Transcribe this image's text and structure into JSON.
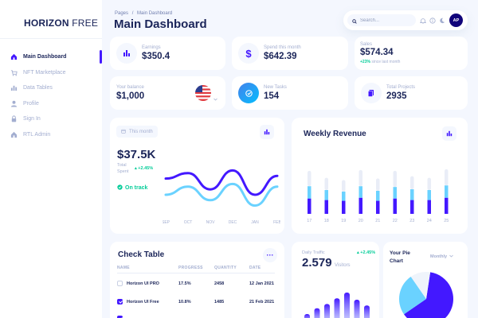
{
  "brand": {
    "bold": "HORIZON",
    "light": "FREE"
  },
  "sidebar": {
    "items": [
      {
        "label": "Main Dashboard",
        "icon": "home-icon",
        "active": true
      },
      {
        "label": "NFT Marketplace",
        "icon": "cart-icon",
        "active": false
      },
      {
        "label": "Data Tables",
        "icon": "bar-chart-icon",
        "active": false
      },
      {
        "label": "Profile",
        "icon": "person-icon",
        "active": false
      },
      {
        "label": "Sign In",
        "icon": "lock-icon",
        "active": false
      },
      {
        "label": "RTL Admin",
        "icon": "home-icon",
        "active": false
      }
    ]
  },
  "header": {
    "breadcrumb": {
      "root": "Pages",
      "separator": "/",
      "current": "Main Dashboard"
    },
    "title": "Main Dashboard",
    "search_placeholder": "Search...",
    "avatar_initials": "AP"
  },
  "stats": {
    "earnings": {
      "label": "Earnings",
      "value": "$350.4"
    },
    "spend": {
      "label": "Spend this month",
      "value": "$642.39"
    },
    "sales": {
      "label": "Sales",
      "value": "$574.34",
      "change": "+23%",
      "change_note": "since last month"
    },
    "balance": {
      "label": "Your balance",
      "value": "$1,000"
    },
    "tasks": {
      "label": "New Tasks",
      "value": "154"
    },
    "projects": {
      "label": "Total Projects",
      "value": "2935"
    }
  },
  "monthly": {
    "period_label": "This month",
    "value": "$37.5K",
    "sub_label_1": "Total",
    "sub_label_2": "Spent",
    "change": "+2.45%",
    "status": "On track",
    "x_labels": [
      "SEP",
      "OCT",
      "NOV",
      "DEC",
      "JAN",
      "FEB"
    ]
  },
  "weekly": {
    "title": "Weekly Revenue",
    "x_labels": [
      "17",
      "18",
      "19",
      "20",
      "21",
      "22",
      "23",
      "24",
      "25"
    ]
  },
  "check_table": {
    "title": "Check Table",
    "columns": [
      "NAME",
      "PROGRESS",
      "QUANTITY",
      "DATE"
    ],
    "rows": [
      {
        "name": "Horizon UI PRO",
        "progress": "17.5%",
        "quantity": "2458",
        "date": "12 Jan 2021",
        "checked": false
      },
      {
        "name": "Horizon UI Free",
        "progress": "10.8%",
        "quantity": "1485",
        "date": "21 Feb 2021",
        "checked": true
      }
    ]
  },
  "traffic": {
    "label": "Daily Traffic",
    "value": "2.579",
    "unit": "Visitors",
    "change": "+2.45%"
  },
  "pie": {
    "title_line1": "Your Pie",
    "title_line2": "Chart",
    "period": "Monthly"
  },
  "colors": {
    "accent": "#4318ff",
    "light_blue": "#6ad2ff",
    "navy": "#1b2559",
    "green": "#05cd99",
    "muted": "#a3aed0"
  },
  "chart_data": [
    {
      "type": "line",
      "x": [
        "SEP",
        "OCT",
        "NOV",
        "DEC",
        "JAN",
        "FEB"
      ],
      "series": [
        {
          "values": [
            0.55,
            0.65,
            0.35,
            0.7,
            0.25,
            0.6
          ]
        },
        {
          "values": [
            0.25,
            0.4,
            0.15,
            0.45,
            0.05,
            0.4
          ]
        }
      ]
    },
    {
      "type": "bar",
      "title": "Weekly Revenue",
      "categories": [
        "17",
        "18",
        "19",
        "20",
        "21",
        "22",
        "23",
        "24",
        "25"
      ],
      "series": [
        {
          "values": [
            20,
            18,
            17,
            21,
            17,
            20,
            18,
            18,
            21
          ]
        },
        {
          "values": [
            16,
            13,
            12,
            15,
            13,
            15,
            14,
            13,
            16
          ]
        },
        {
          "values": [
            20,
            16,
            15,
            21,
            16,
            21,
            17,
            16,
            21
          ]
        }
      ],
      "ylim": [
        0,
        60
      ]
    },
    {
      "type": "bar",
      "values": [
        5,
        9,
        12,
        16,
        20,
        15,
        11
      ]
    },
    {
      "type": "pie",
      "values": [
        63,
        25,
        12
      ]
    }
  ]
}
